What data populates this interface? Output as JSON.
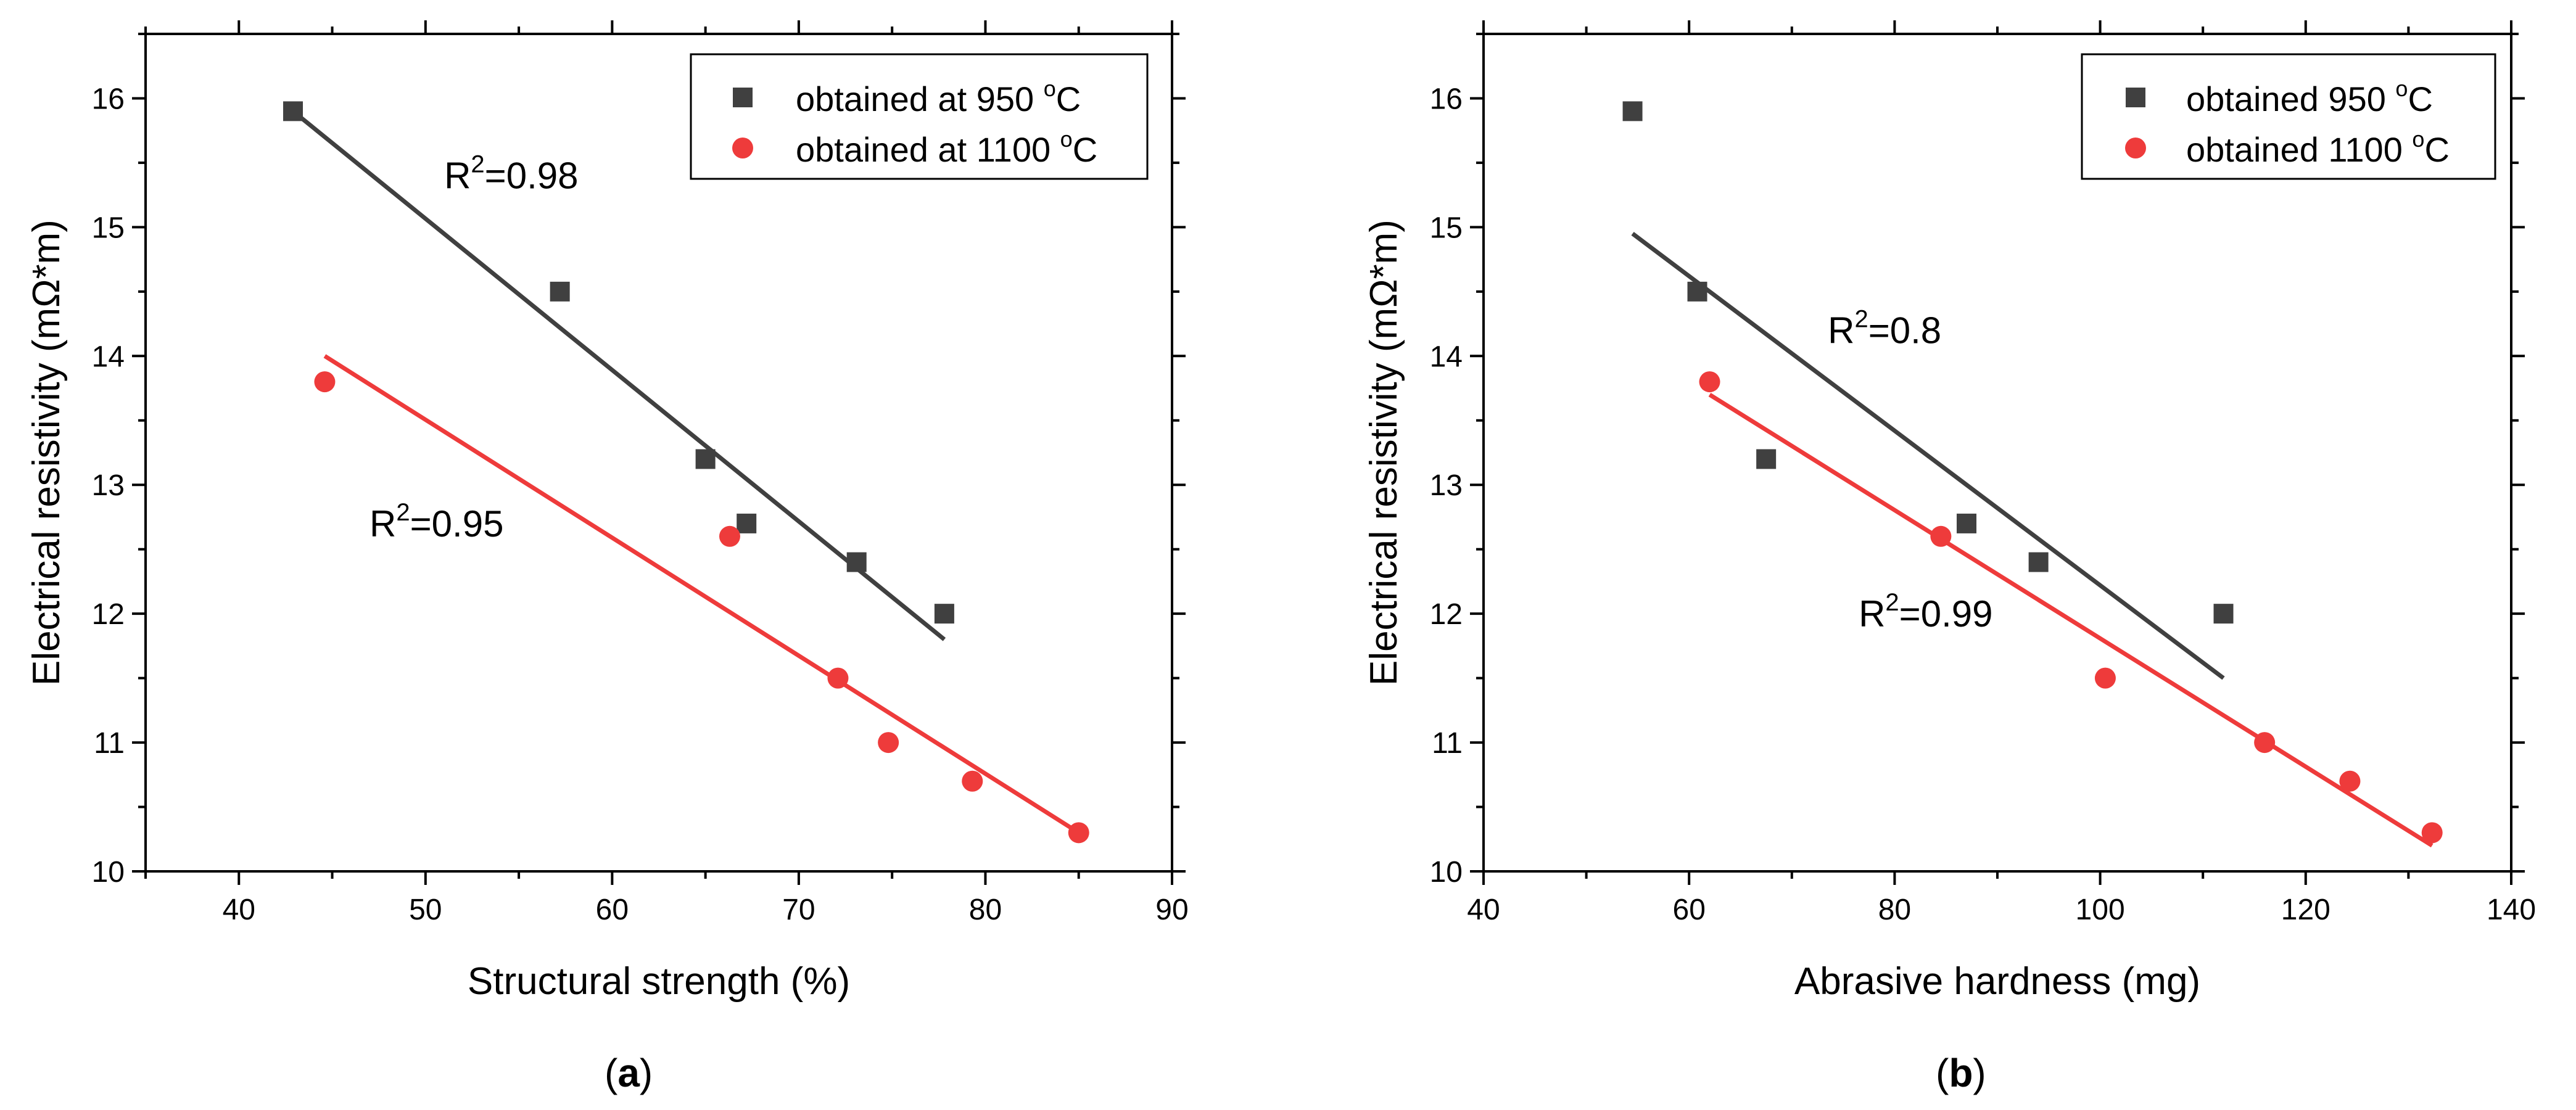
{
  "chart_data": [
    {
      "type": "scatter",
      "panel_label": "a",
      "xlabel": "Structural strength (%)",
      "ylabel": "Electrical resistivity (mΩ*m)",
      "xlim": [
        35,
        90
      ],
      "ylim": [
        10,
        16.5
      ],
      "xticks": [
        40,
        50,
        60,
        70,
        80,
        90
      ],
      "yticks": [
        10,
        11,
        12,
        13,
        14,
        15,
        16
      ],
      "legend_position": "top-right",
      "series": [
        {
          "name": "obtained at 950 °C",
          "label_main": "obtained at 950 ",
          "label_sup": "o",
          "label_unit": "C",
          "marker": "square",
          "color": "#404040",
          "points": [
            [
              42.9,
              15.9
            ],
            [
              57.2,
              14.5
            ],
            [
              65.0,
              13.2
            ],
            [
              67.2,
              12.7
            ],
            [
              73.1,
              12.4
            ],
            [
              77.8,
              12.0
            ]
          ],
          "fit": {
            "from": [
              42.9,
              15.9
            ],
            "to": [
              77.8,
              11.8
            ]
          },
          "r2_base": "R",
          "r2_sup": "2",
          "r2_value": "=0.98",
          "r2_anchor": [
            51.0,
            15.3
          ]
        },
        {
          "name": "obtained at 1100 °C",
          "label_main": "obtained at 1100 ",
          "label_sup": "o",
          "label_unit": "C",
          "marker": "circle",
          "color": "#ee3b3b",
          "points": [
            [
              44.6,
              13.8
            ],
            [
              66.3,
              12.6
            ],
            [
              72.1,
              11.5
            ],
            [
              74.8,
              11.0
            ],
            [
              79.3,
              10.7
            ],
            [
              85.0,
              10.3
            ]
          ],
          "fit": {
            "from": [
              44.6,
              14.0
            ],
            "to": [
              85.0,
              10.3
            ]
          },
          "r2_base": "R",
          "r2_sup": "2",
          "r2_value": "=0.95",
          "r2_anchor": [
            47.0,
            12.6
          ]
        }
      ]
    },
    {
      "type": "scatter",
      "panel_label": "b",
      "xlabel": "Abrasive hardness (mg)",
      "ylabel": "Electrical resistivity (mΩ*m)",
      "xlim": [
        40,
        140
      ],
      "ylim": [
        10,
        16.5
      ],
      "xticks": [
        40,
        60,
        80,
        100,
        120,
        140
      ],
      "yticks": [
        10,
        11,
        12,
        13,
        14,
        15,
        16
      ],
      "legend_position": "top-right",
      "series": [
        {
          "name": "obtained 950 °C",
          "label_main": "obtained 950 ",
          "label_sup": "o",
          "label_unit": "C",
          "marker": "square",
          "color": "#404040",
          "points": [
            [
              54.5,
              15.9
            ],
            [
              60.8,
              14.5
            ],
            [
              67.5,
              13.2
            ],
            [
              87.0,
              12.7
            ],
            [
              94.0,
              12.4
            ],
            [
              112.0,
              12.0
            ]
          ],
          "fit": {
            "from": [
              54.5,
              14.95
            ],
            "to": [
              112.0,
              11.5
            ]
          },
          "r2_base": "R",
          "r2_sup": "2",
          "r2_value": "=0.8",
          "r2_anchor": [
            73.5,
            14.1
          ]
        },
        {
          "name": "obtained 1100 °C",
          "label_main": "obtained 1100 ",
          "label_sup": "o",
          "label_unit": "C",
          "marker": "circle",
          "color": "#ee3b3b",
          "points": [
            [
              62.0,
              13.8
            ],
            [
              84.5,
              12.6
            ],
            [
              100.5,
              11.5
            ],
            [
              116.0,
              11.0
            ],
            [
              124.3,
              10.7
            ],
            [
              132.3,
              10.3
            ]
          ],
          "fit": {
            "from": [
              62.0,
              13.7
            ],
            "to": [
              132.3,
              10.2
            ]
          },
          "r2_base": "R",
          "r2_sup": "2",
          "r2_value": "=0.99",
          "r2_anchor": [
            76.5,
            11.9
          ]
        }
      ]
    }
  ]
}
